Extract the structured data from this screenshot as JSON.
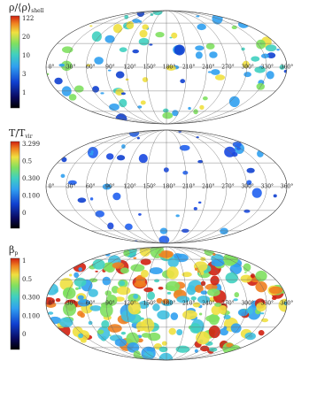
{
  "panels": [
    {
      "label": "ρ/⟨ρ⟩",
      "label_sub": "shell",
      "colorbar_ticks": [
        "122",
        "20",
        "10",
        "3",
        "1"
      ]
    },
    {
      "label": "T/T",
      "label_sub": "vir",
      "colorbar_ticks": [
        "3.299",
        "0.5",
        "0.300",
        "0.100",
        "0"
      ]
    },
    {
      "label": "β",
      "label_sub": "p",
      "colorbar_ticks": [
        "1",
        "0.5",
        "0.300",
        "0.100",
        "0"
      ]
    }
  ],
  "longitude_labels": [
    "0°",
    "30°",
    "60°",
    "90°",
    "120°",
    "150°",
    "180°",
    "210°",
    "240°",
    "270°",
    "300°",
    "330°",
    "360°"
  ]
}
